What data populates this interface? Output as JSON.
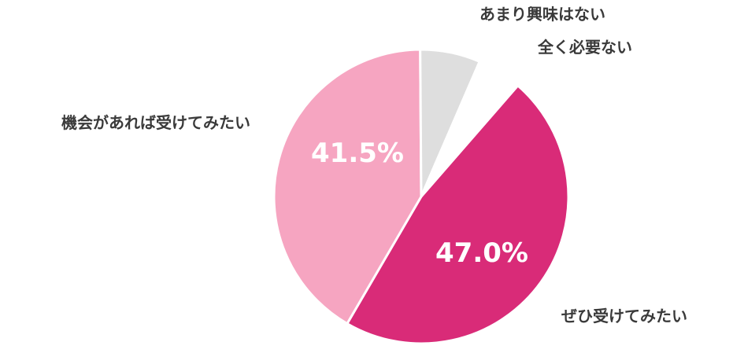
{
  "chart_data": {
    "type": "pie",
    "categories": [
      "ぜひ受けてみたい",
      "機会があれば受けてみたい",
      "あまり興味はない",
      "全く必要ない"
    ],
    "values": [
      47.0,
      41.5,
      6.6,
      4.9
    ],
    "value_labels": [
      "47.0%",
      "41.5%",
      "",
      ""
    ],
    "colors": [
      "#d92b78",
      "#f6a5c1",
      "#dedede",
      "#ffffff"
    ],
    "title": "",
    "legend": "none"
  }
}
